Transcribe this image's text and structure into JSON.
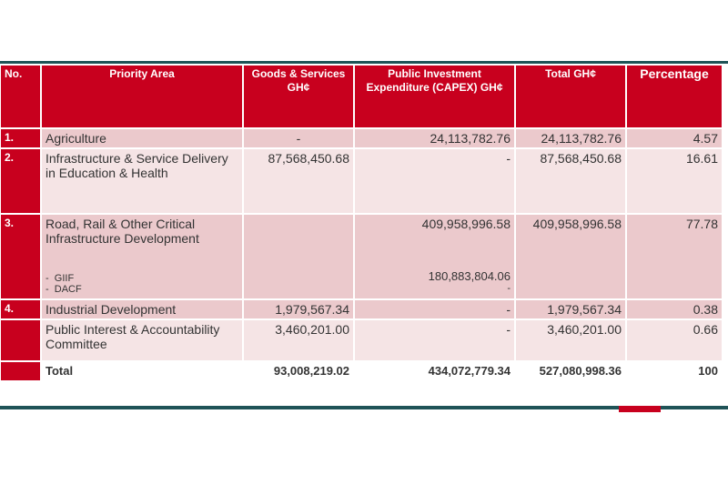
{
  "table": {
    "headers": {
      "no": "No.",
      "priority": "Priority Area",
      "goods": "Goods & Services GH¢",
      "capex": "Public Investment Expenditure (CAPEX) GH¢",
      "total": "Total GH¢",
      "pct": "Percentage"
    },
    "rows": [
      {
        "no": "1.",
        "area": "Agriculture",
        "goods": "-",
        "capex": "24,113,782.76",
        "total": "24,113,782.76",
        "pct": "4.57"
      },
      {
        "no": "2.",
        "area": "Infrastructure & Service Delivery in Education & Health",
        "goods": "87,568,450.68",
        "capex": "-",
        "total": "87,568,450.68",
        "pct": "16.61"
      },
      {
        "no": "3.",
        "area": "Road, Rail & Other Critical Infrastructure Development",
        "sub1": "GIIF",
        "sub2": "DACF",
        "goods": "",
        "capex": "409,958,996.58",
        "capex_sub1": "180,883,804.06",
        "capex_sub2": "-",
        "total": "409,958,996.58",
        "pct": "77.78"
      },
      {
        "no": "4.",
        "area": "Industrial Development",
        "goods": "1,979,567.34",
        "capex": "-",
        "total": "1,979,567.34",
        "pct": "0.38"
      },
      {
        "no": "",
        "area": "Public Interest & Accountability Committee",
        "goods": "3,460,201.00",
        "capex": "-",
        "total": "3,460,201.00",
        "pct": "0.66"
      }
    ],
    "total_row": {
      "label": "Total",
      "goods": "93,008,219.02",
      "capex": "434,072,779.34",
      "total": "527,080,998.36",
      "pct": "100"
    }
  }
}
